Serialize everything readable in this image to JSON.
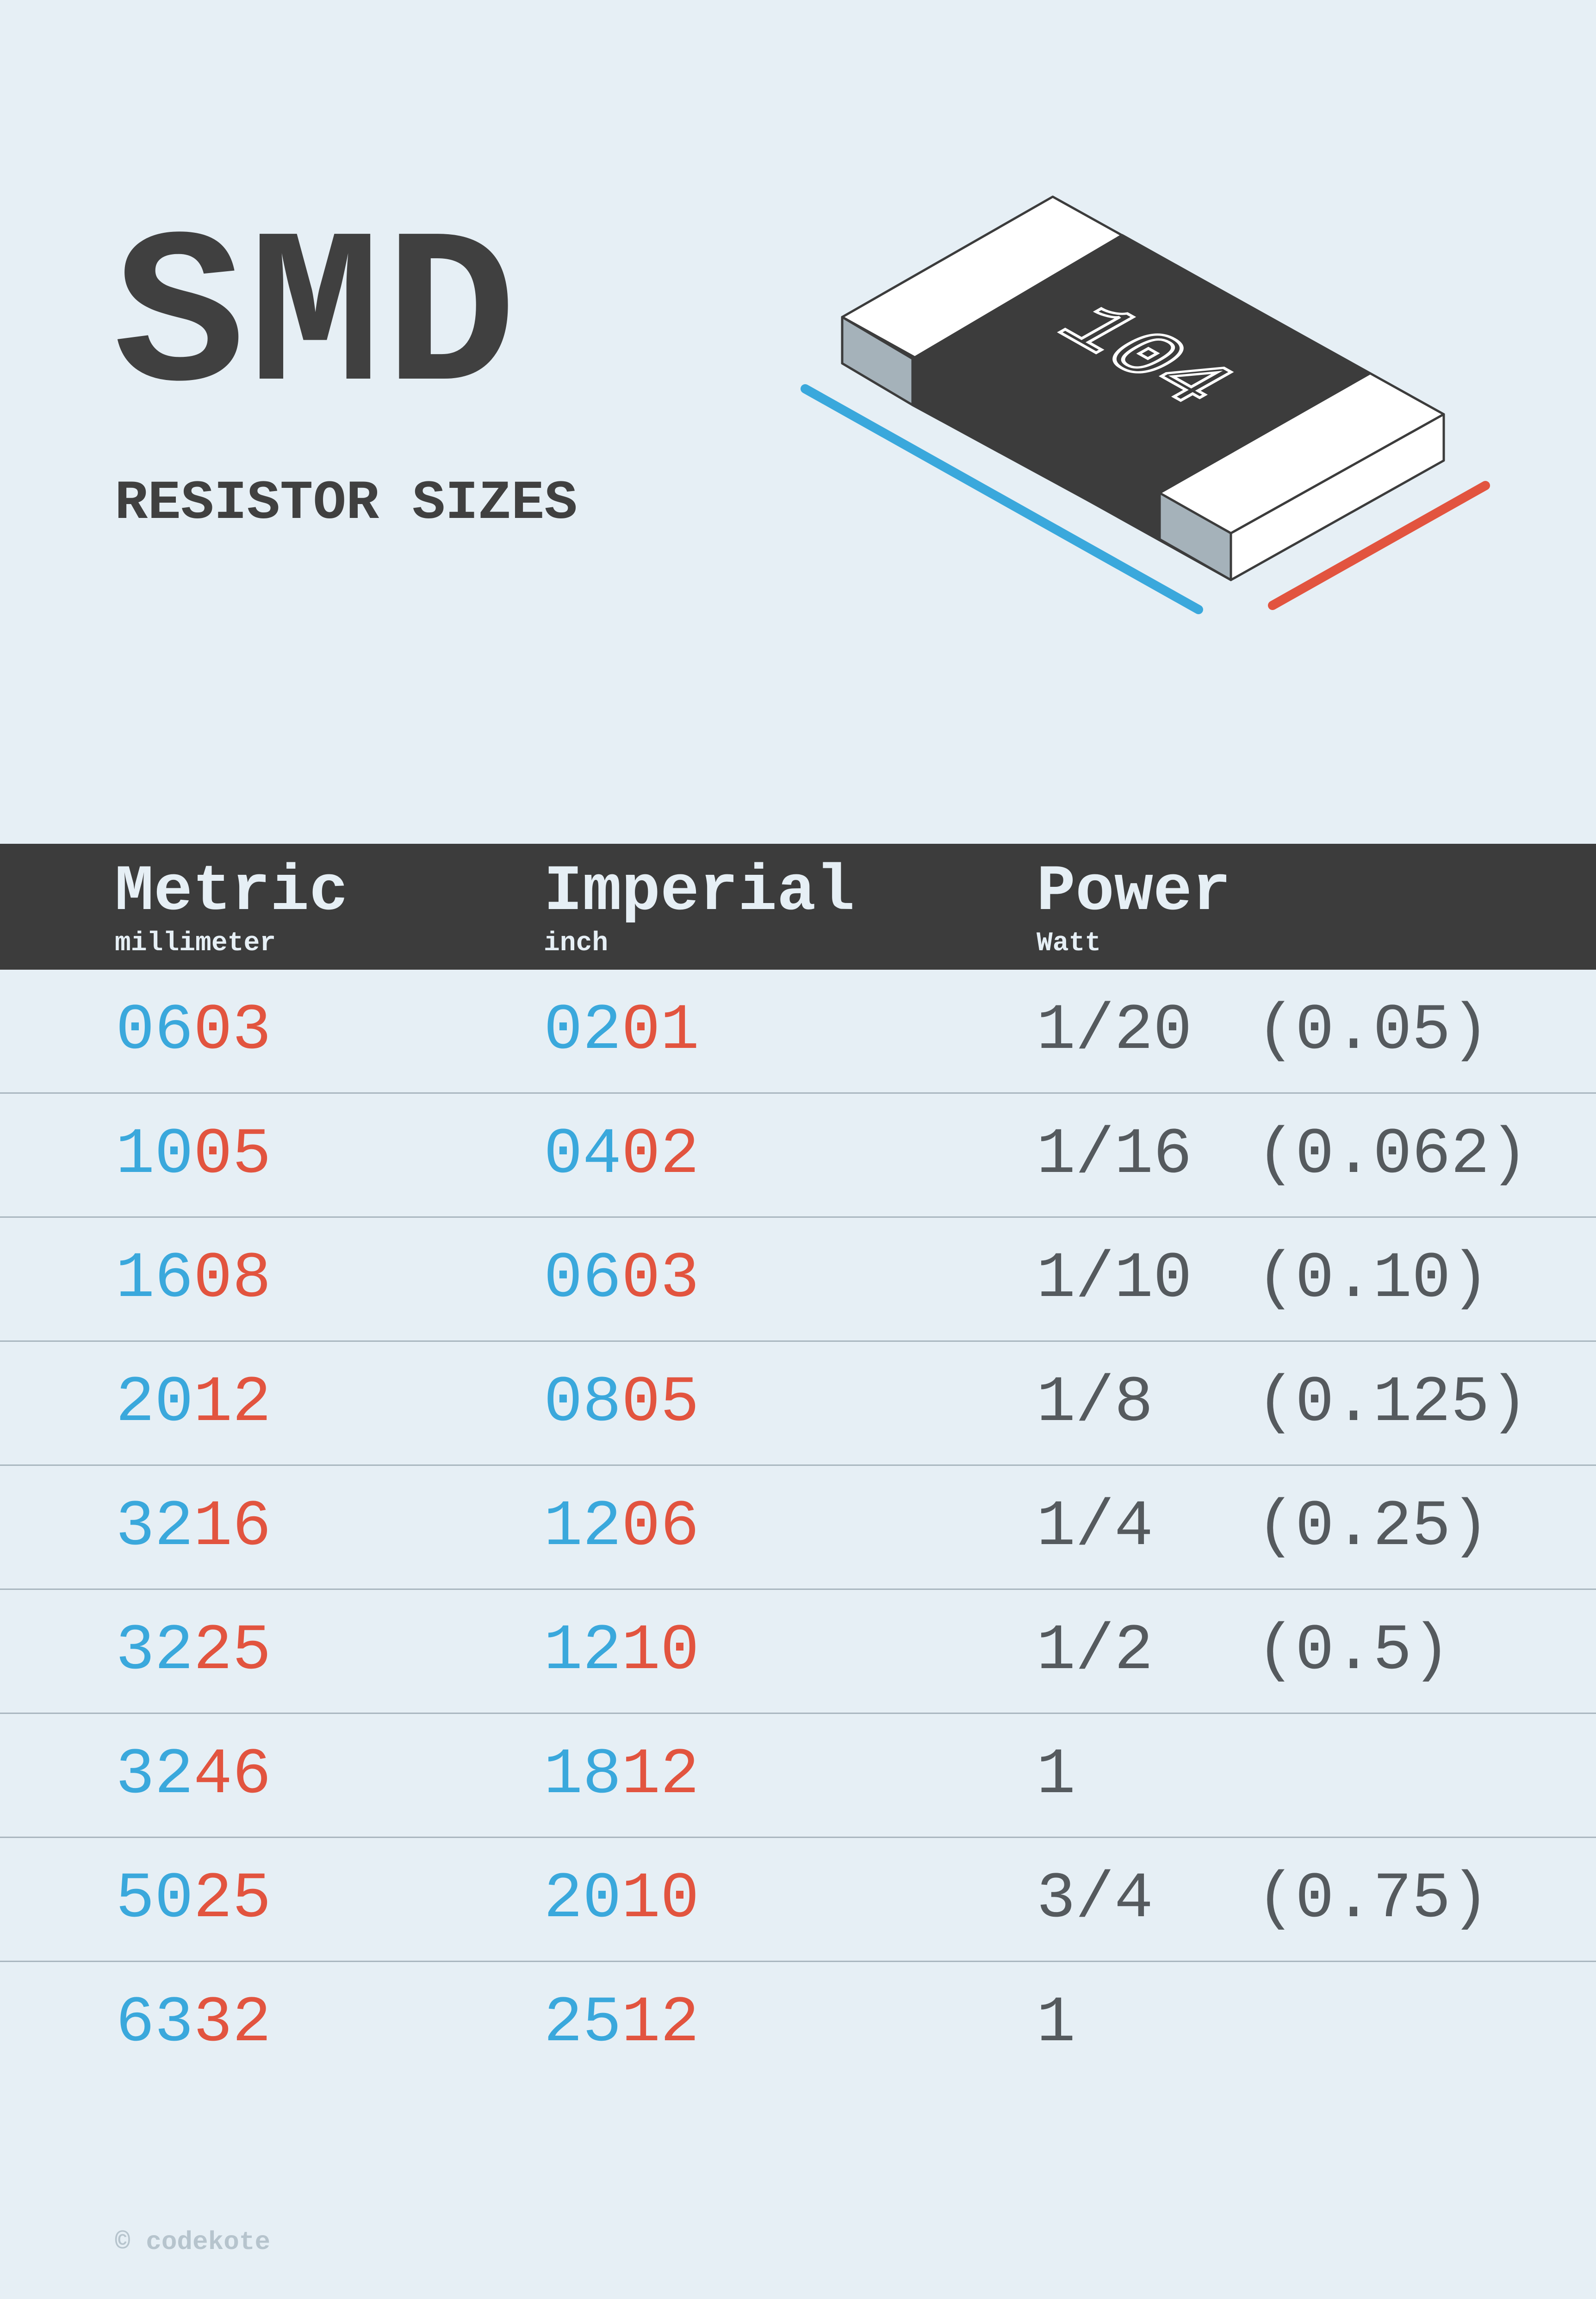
{
  "header": {
    "title": "SMD",
    "subtitle": "RESISTOR SIZES",
    "chip_label": "104"
  },
  "colors": {
    "background": "#e6eff5",
    "dark": "#3c3c3c",
    "blue": "#3aa8dc",
    "red": "#e2543f",
    "power_text": "#555a5e",
    "divider": "#a9b6bf"
  },
  "table": {
    "columns": [
      {
        "label": "Metric",
        "unit": "millimeter"
      },
      {
        "label": "Imperial",
        "unit": "inch"
      },
      {
        "label": "Power",
        "unit": "Watt"
      }
    ],
    "rows": [
      {
        "metric": {
          "blue": "06",
          "red": "03"
        },
        "imperial": {
          "blue": "02",
          "red": "01"
        },
        "power": "1/20",
        "power_decimal": "(0.05)"
      },
      {
        "metric": {
          "blue": "10",
          "red": "05"
        },
        "imperial": {
          "blue": "04",
          "red": "02"
        },
        "power": "1/16",
        "power_decimal": "(0.062)"
      },
      {
        "metric": {
          "blue": "16",
          "red": "08"
        },
        "imperial": {
          "blue": "06",
          "red": "03"
        },
        "power": "1/10",
        "power_decimal": "(0.10)"
      },
      {
        "metric": {
          "blue": "20",
          "red": "12"
        },
        "imperial": {
          "blue": "08",
          "red": "05"
        },
        "power": "1/8",
        "power_decimal": "(0.125)"
      },
      {
        "metric": {
          "blue": "32",
          "red": "16"
        },
        "imperial": {
          "blue": "12",
          "red": "06"
        },
        "power": "1/4",
        "power_decimal": "(0.25)"
      },
      {
        "metric": {
          "blue": "32",
          "red": "25"
        },
        "imperial": {
          "blue": "12",
          "red": "10"
        },
        "power": "1/2",
        "power_decimal": "(0.5)"
      },
      {
        "metric": {
          "blue": "32",
          "red": "46"
        },
        "imperial": {
          "blue": "18",
          "red": "12"
        },
        "power": "1",
        "power_decimal": ""
      },
      {
        "metric": {
          "blue": "50",
          "red": "25"
        },
        "imperial": {
          "blue": "20",
          "red": "10"
        },
        "power": "3/4",
        "power_decimal": "(0.75)"
      },
      {
        "metric": {
          "blue": "63",
          "red": "32"
        },
        "imperial": {
          "blue": "25",
          "red": "12"
        },
        "power": "1",
        "power_decimal": ""
      }
    ]
  },
  "footer": {
    "credit": "© codekote"
  }
}
